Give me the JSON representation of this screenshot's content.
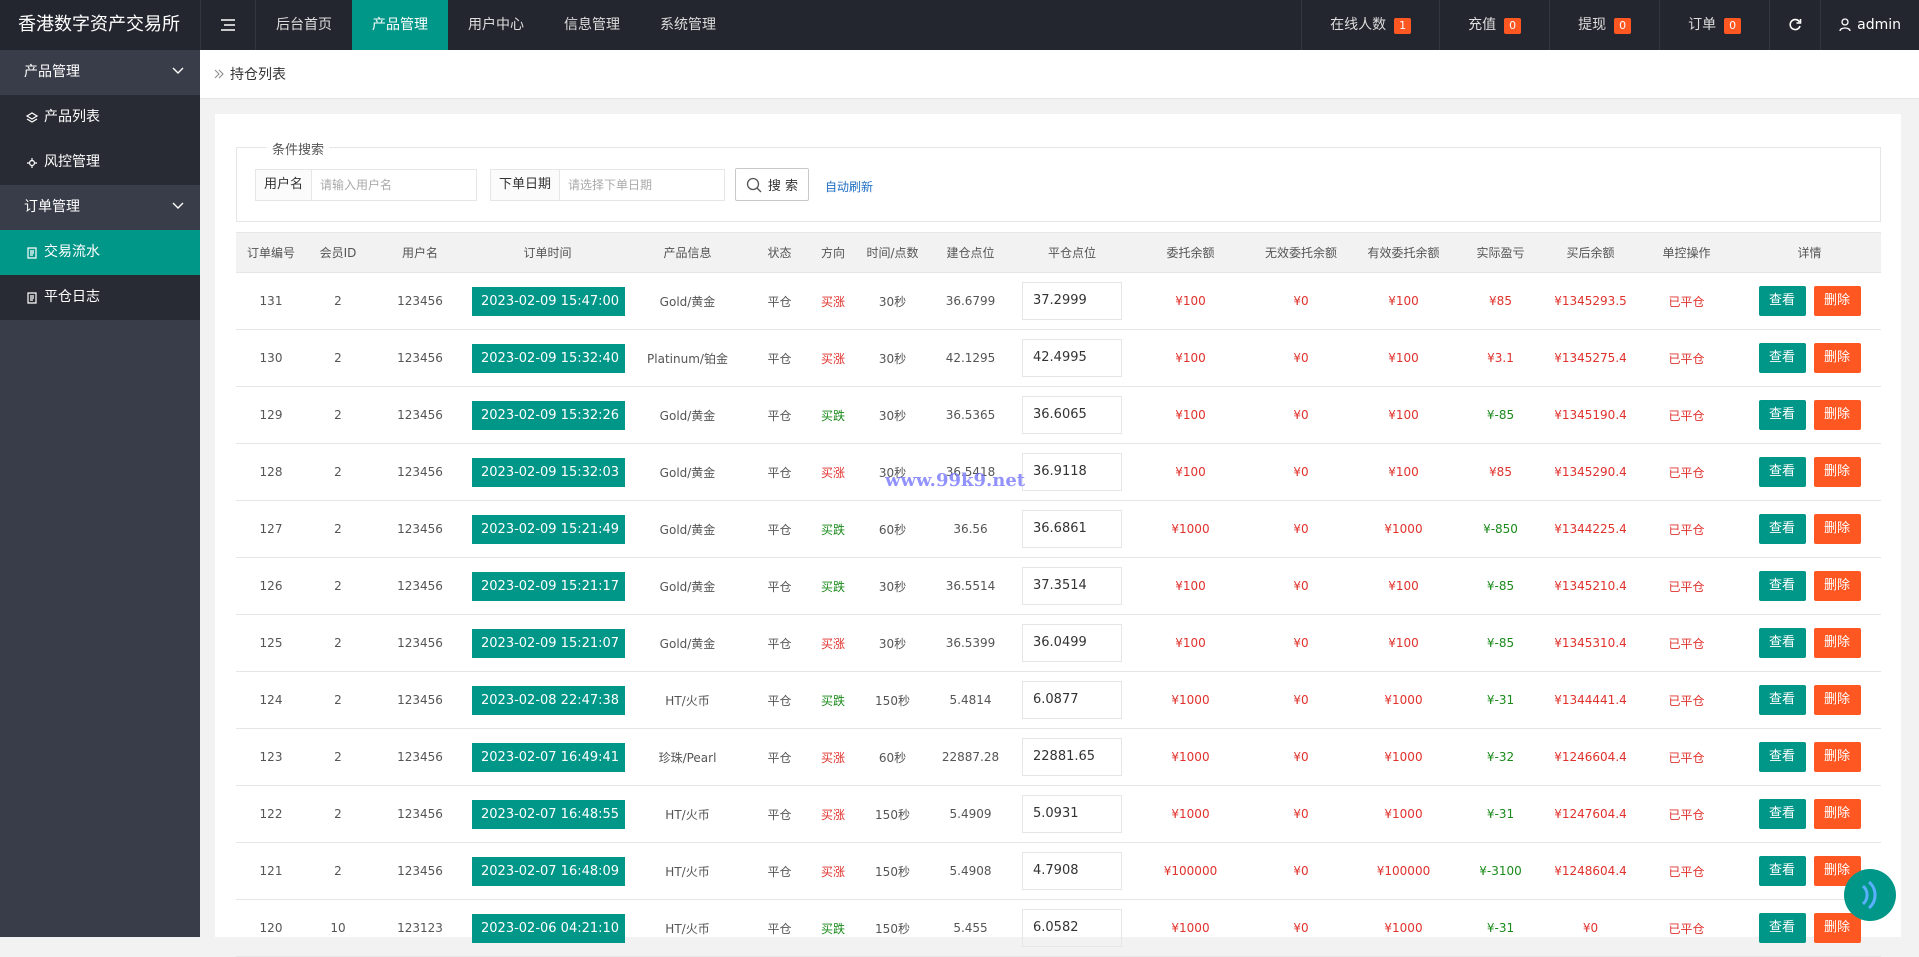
{
  "header": {
    "logo": "香港数字资产交易所",
    "nav": [
      "后台首页",
      "产品管理",
      "用户中心",
      "信息管理",
      "系统管理"
    ],
    "active_nav": 1,
    "stats": [
      {
        "label": "在线人数",
        "count": "1"
      },
      {
        "label": "充值",
        "count": "0"
      },
      {
        "label": "提现",
        "count": "0"
      },
      {
        "label": "订单",
        "count": "0"
      }
    ],
    "user": "admin"
  },
  "sidebar": {
    "groups": [
      {
        "title": "产品管理",
        "items": [
          "产品列表",
          "风控管理"
        ]
      },
      {
        "title": "订单管理",
        "items": [
          "交易流水",
          "平仓日志"
        ]
      }
    ],
    "active_item": [
      1,
      0
    ]
  },
  "breadcrumb": "持仓列表",
  "search": {
    "legend": "条件搜索",
    "fields": [
      {
        "label": "用户名",
        "placeholder": "请输入用户名"
      },
      {
        "label": "下单日期",
        "placeholder": "请选择下单日期"
      }
    ],
    "button": "搜 索",
    "auto_refresh": "自动刷新"
  },
  "table": {
    "columns": [
      "订单编号",
      "会员ID",
      "用户名",
      "订单时间",
      "产品信息",
      "状态",
      "方向",
      "时间/点数",
      "建仓点位",
      "平仓点位",
      "委托余额",
      "无效委托余额",
      "有效委托余额",
      "实际盈亏",
      "买后余额",
      "单控操作",
      "详情"
    ],
    "view_button": "查看",
    "delete_button": "删除",
    "rows": [
      {
        "cells": [
          "131",
          "2",
          "123456",
          "2023-02-09 15:47:00",
          "Gold/黄金",
          "平仓",
          "买涨",
          "30秒",
          "36.6799",
          "37.2999",
          "¥100",
          "¥0",
          "¥100",
          "¥85",
          "¥1345293.5",
          "已平仓"
        ],
        "direction_color": "#e0312c",
        "pnl_color": "#e0312c"
      },
      {
        "cells": [
          "130",
          "2",
          "123456",
          "2023-02-09 15:32:40",
          "Platinum/铂金",
          "平仓",
          "买涨",
          "30秒",
          "42.1295",
          "42.4995",
          "¥100",
          "¥0",
          "¥100",
          "¥3.1",
          "¥1345275.4",
          "已平仓"
        ],
        "direction_color": "#e0312c",
        "pnl_color": "#e0312c"
      },
      {
        "cells": [
          "129",
          "2",
          "123456",
          "2023-02-09 15:32:26",
          "Gold/黄金",
          "平仓",
          "买跌",
          "30秒",
          "36.5365",
          "36.6065",
          "¥100",
          "¥0",
          "¥100",
          "¥-85",
          "¥1345190.4",
          "已平仓"
        ],
        "direction_color": "#1a8a1a",
        "pnl_color": "#1a8a1a"
      },
      {
        "cells": [
          "128",
          "2",
          "123456",
          "2023-02-09 15:32:03",
          "Gold/黄金",
          "平仓",
          "买涨",
          "30秒",
          "36.5418",
          "36.9118",
          "¥100",
          "¥0",
          "¥100",
          "¥85",
          "¥1345290.4",
          "已平仓"
        ],
        "direction_color": "#e0312c",
        "pnl_color": "#e0312c"
      },
      {
        "cells": [
          "127",
          "2",
          "123456",
          "2023-02-09 15:21:49",
          "Gold/黄金",
          "平仓",
          "买跌",
          "60秒",
          "36.56",
          "36.6861",
          "¥1000",
          "¥0",
          "¥1000",
          "¥-850",
          "¥1344225.4",
          "已平仓"
        ],
        "direction_color": "#1a8a1a",
        "pnl_color": "#1a8a1a"
      },
      {
        "cells": [
          "126",
          "2",
          "123456",
          "2023-02-09 15:21:17",
          "Gold/黄金",
          "平仓",
          "买跌",
          "30秒",
          "36.5514",
          "37.3514",
          "¥100",
          "¥0",
          "¥100",
          "¥-85",
          "¥1345210.4",
          "已平仓"
        ],
        "direction_color": "#1a8a1a",
        "pnl_color": "#1a8a1a"
      },
      {
        "cells": [
          "125",
          "2",
          "123456",
          "2023-02-09 15:21:07",
          "Gold/黄金",
          "平仓",
          "买涨",
          "30秒",
          "36.5399",
          "36.0499",
          "¥100",
          "¥0",
          "¥100",
          "¥-85",
          "¥1345310.4",
          "已平仓"
        ],
        "direction_color": "#e0312c",
        "pnl_color": "#1a8a1a"
      },
      {
        "cells": [
          "124",
          "2",
          "123456",
          "2023-02-08 22:47:38",
          "HT/火币",
          "平仓",
          "买跌",
          "150秒",
          "5.4814",
          "6.0877",
          "¥1000",
          "¥0",
          "¥1000",
          "¥-31",
          "¥1344441.4",
          "已平仓"
        ],
        "direction_color": "#1a8a1a",
        "pnl_color": "#1a8a1a"
      },
      {
        "cells": [
          "123",
          "2",
          "123456",
          "2023-02-07 16:49:41",
          "珍珠/Pearl",
          "平仓",
          "买涨",
          "60秒",
          "22887.28",
          "22881.65",
          "¥1000",
          "¥0",
          "¥1000",
          "¥-32",
          "¥1246604.4",
          "已平仓"
        ],
        "direction_color": "#e0312c",
        "pnl_color": "#1a8a1a"
      },
      {
        "cells": [
          "122",
          "2",
          "123456",
          "2023-02-07 16:48:55",
          "HT/火币",
          "平仓",
          "买涨",
          "150秒",
          "5.4909",
          "5.0931",
          "¥1000",
          "¥0",
          "¥1000",
          "¥-31",
          "¥1247604.4",
          "已平仓"
        ],
        "direction_color": "#e0312c",
        "pnl_color": "#1a8a1a"
      },
      {
        "cells": [
          "121",
          "2",
          "123456",
          "2023-02-07 16:48:09",
          "HT/火币",
          "平仓",
          "买涨",
          "150秒",
          "5.4908",
          "4.7908",
          "¥100000",
          "¥0",
          "¥100000",
          "¥-3100",
          "¥1248604.4",
          "已平仓"
        ],
        "direction_color": "#e0312c",
        "pnl_color": "#1a8a1a"
      },
      {
        "cells": [
          "120",
          "10",
          "123123",
          "2023-02-06 04:21:10",
          "HT/火币",
          "平仓",
          "买跌",
          "150秒",
          "5.455",
          "6.0582",
          "¥1000",
          "¥0",
          "¥1000",
          "¥-31",
          "¥0",
          "已平仓"
        ],
        "direction_color": "#1a8a1a",
        "pnl_color": "#1a8a1a"
      }
    ]
  },
  "watermark": "www.99k9.net"
}
